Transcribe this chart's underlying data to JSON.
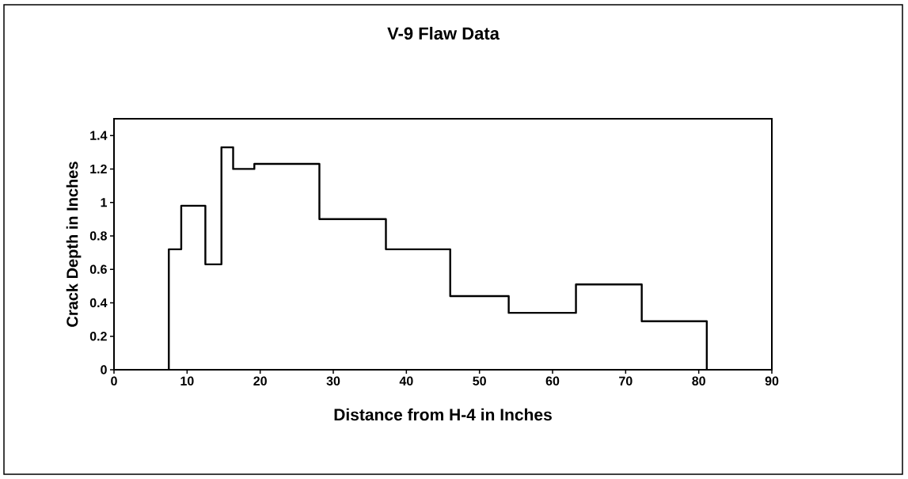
{
  "chart_data": {
    "type": "histogram",
    "title": "V-9 Flaw Data",
    "xlabel": "Distance from H-4 in Inches",
    "ylabel": "Crack Depth in Inches",
    "bins": [
      7.5,
      9.2,
      12.5,
      14.7,
      16.3,
      19.2,
      28.1,
      37.2,
      46,
      54,
      63.2,
      72.2,
      81.1
    ],
    "values": [
      0.72,
      0.98,
      0.63,
      1.33,
      1.2,
      1.23,
      0.9,
      0.72,
      0.44,
      0.34,
      0.51,
      0.29
    ],
    "color": "#000000",
    "xlim": [
      0,
      90
    ],
    "ylim": [
      0,
      1.5
    ],
    "xticks": [
      0,
      10,
      20,
      30,
      40,
      50,
      60,
      70,
      80,
      90
    ],
    "yticks": [
      0,
      0.2,
      0.4,
      0.6,
      0.8,
      1,
      1.2,
      1.4
    ],
    "grid": false
  }
}
